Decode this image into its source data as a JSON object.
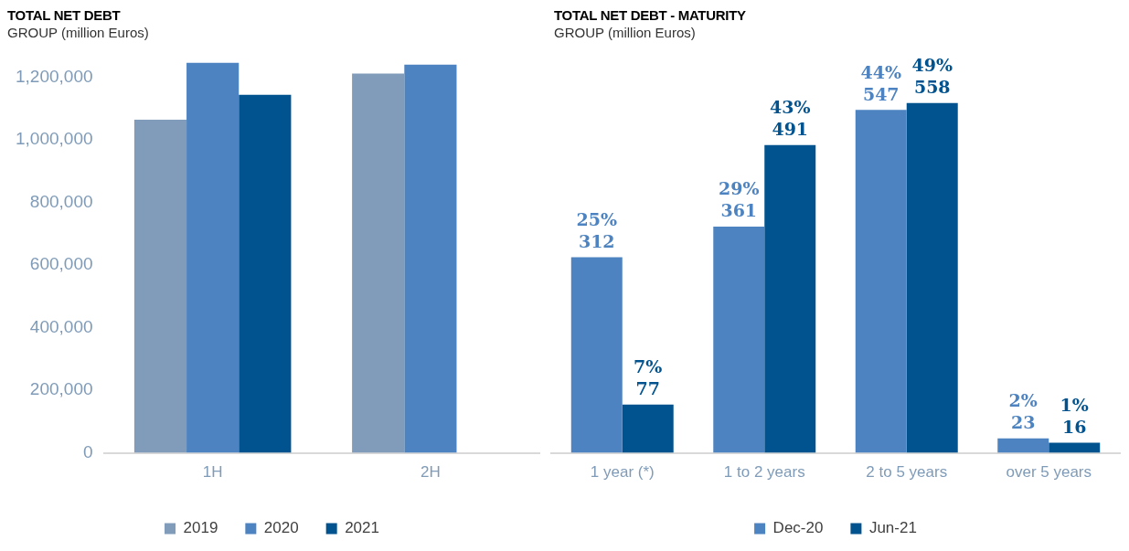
{
  "chart_data": [
    {
      "type": "bar",
      "title": "TOTAL NET DEBT",
      "subtitle": "GROUP (million Euros)",
      "categories": [
        "1H",
        "2H"
      ],
      "series": [
        {
          "name": "2019",
          "color": "#809cba",
          "values": [
            1064000,
            1212000
          ]
        },
        {
          "name": "2020",
          "color": "#4d83c0",
          "values": [
            1246000,
            1240000
          ]
        },
        {
          "name": "2021",
          "color": "#00538f",
          "values": [
            1144000,
            null
          ]
        }
      ],
      "ylim": [
        0,
        1250000
      ],
      "yticks": [
        0,
        {
          "value": 200000,
          "label": "200,000"
        },
        {
          "value": 400000,
          "label": "400,000"
        },
        {
          "value": 600000,
          "label": "600,000"
        },
        {
          "value": 800000,
          "label": "800,000"
        },
        {
          "value": 1000000,
          "label": "1,000,000"
        },
        {
          "value": 1200000,
          "label": "1,200,000"
        }
      ],
      "grid": false,
      "legend": "bottom"
    },
    {
      "type": "bar",
      "title": "TOTAL NET DEBT - MATURITY",
      "subtitle": "GROUP (million Euros)",
      "categories": [
        "1 year (*)",
        "1 to 2 years",
        "2 to 5 years",
        "over 5 years"
      ],
      "series": [
        {
          "name": "Dec-20",
          "color": "#4d83c0",
          "values": [
            312,
            361,
            547,
            23
          ],
          "value_labels": [
            "25%\n312",
            "29%\n361",
            "44%\n547",
            "2%\n23"
          ]
        },
        {
          "name": "Jun-21",
          "color": "#00538f",
          "values": [
            77,
            491,
            558,
            16
          ],
          "value_labels": [
            "7%\n77",
            "43%\n491",
            "49%\n558",
            "1%\n16"
          ]
        }
      ],
      "grid": false,
      "legend": "bottom"
    }
  ]
}
